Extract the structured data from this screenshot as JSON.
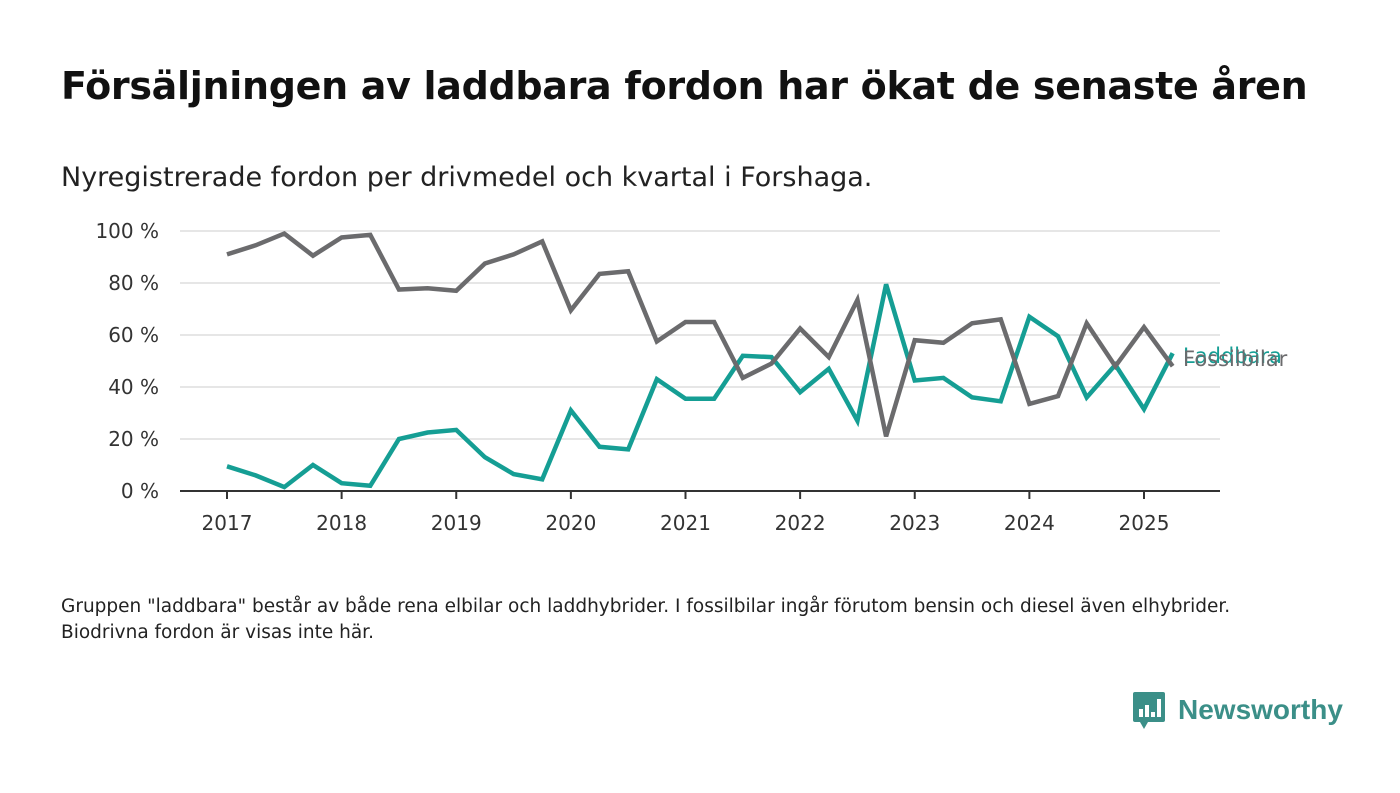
{
  "title": "Försäljningen av laddbara fordon har ökat de senaste åren",
  "subtitle": "Nyregistrerade fordon per drivmedel och kvartal i Forshaga.",
  "note": "Gruppen \"laddbara\" består av både rena elbilar och laddhybrider. I fossilbilar ingår förutom bensin och diesel även elhybrider. Biodrivna fordon är visas inte här.",
  "brand": {
    "name": "Newsworthy",
    "icon": "newsworthy-logo-icon",
    "color": "#3b8f88"
  },
  "chart_data": {
    "type": "line",
    "title": "",
    "xlabel": "",
    "ylabel": "",
    "ylim": [
      0,
      100
    ],
    "yticks": [
      "0 %",
      "20 %",
      "40 %",
      "60 %",
      "80 %",
      "100 %"
    ],
    "xticks": [
      "2017",
      "2018",
      "2019",
      "2020",
      "2021",
      "2022",
      "2023",
      "2024",
      "2025"
    ],
    "grid": true,
    "legend": "direct labels at right end of lines",
    "x": [
      "2017 K1",
      "2017 K2",
      "2017 K3",
      "2017 K4",
      "2018 K1",
      "2018 K2",
      "2018 K3",
      "2018 K4",
      "2019 K1",
      "2019 K2",
      "2019 K3",
      "2019 K4",
      "2020 K1",
      "2020 K2",
      "2020 K3",
      "2020 K4",
      "2021 K1",
      "2021 K2",
      "2021 K3",
      "2021 K4",
      "2022 K1",
      "2022 K2",
      "2022 K3",
      "2022 K4",
      "2023 K1",
      "2023 K2",
      "2023 K3",
      "2023 K4",
      "2024 K1",
      "2024 K2",
      "2024 K3",
      "2024 K4",
      "2025 K1",
      "2025 K2"
    ],
    "series": [
      {
        "name": "Fossilbilar",
        "color": "#6b6b6d",
        "values": [
          91,
          94.5,
          99,
          90.5,
          97.5,
          98.5,
          77.5,
          78,
          77,
          87.5,
          91,
          96,
          69.5,
          83.5,
          84.5,
          57.5,
          65,
          65,
          43.5,
          49,
          62.5,
          51.5,
          73.5,
          21,
          58,
          57,
          64.5,
          66,
          33.5,
          36.5,
          64.5,
          48,
          63,
          48
        ]
      },
      {
        "name": "Laddbara",
        "color": "#159e94",
        "values": [
          9.5,
          6,
          1.5,
          10,
          3,
          2,
          20,
          22.5,
          23.5,
          13,
          6.5,
          4.5,
          31,
          17,
          16,
          43,
          35.5,
          35.5,
          52,
          51.5,
          38,
          47,
          27,
          79.5,
          42.5,
          43.5,
          36,
          34.5,
          67,
          59.5,
          36,
          48.5,
          31.5,
          53
        ]
      }
    ]
  }
}
